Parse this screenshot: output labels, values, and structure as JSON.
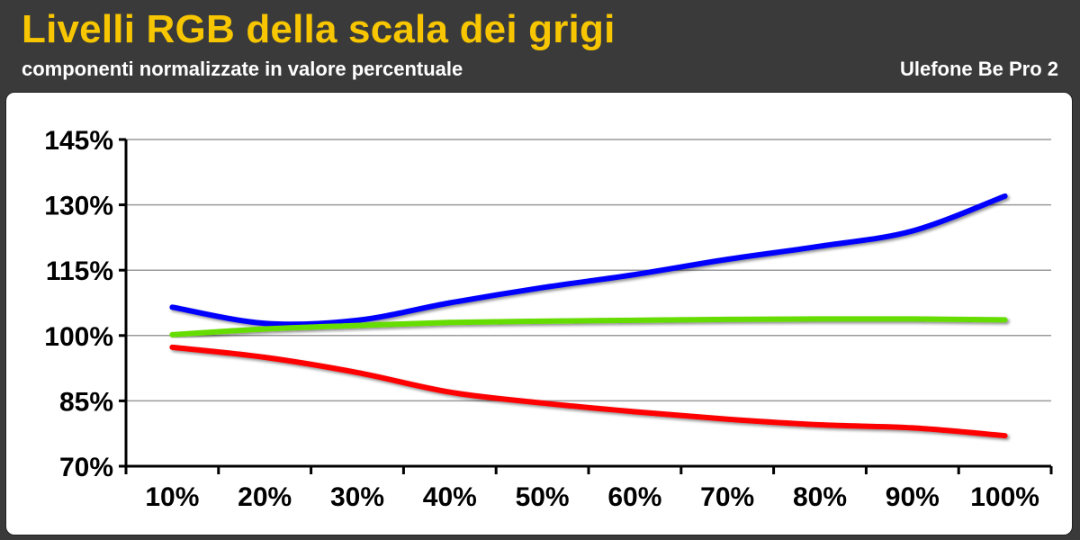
{
  "header": {
    "title": "Livelli RGB della scala dei grigi",
    "subtitle": "componenti normalizzate in valore percentuale",
    "device": "Ulefone Be Pro 2"
  },
  "colors": {
    "background": "#3a3a3a",
    "title": "#f7c600",
    "text": "#ffffff",
    "panel": "#ffffff",
    "grid": "#9a9a9a"
  },
  "chart_data": {
    "type": "line",
    "title": "Livelli RGB della scala dei grigi",
    "subtitle": "componenti normalizzate in valore percentuale",
    "xlabel": "",
    "ylabel": "",
    "categories": [
      "10%",
      "20%",
      "30%",
      "40%",
      "50%",
      "60%",
      "70%",
      "80%",
      "90%",
      "100%"
    ],
    "yticks": [
      "70%",
      "85%",
      "100%",
      "115%",
      "130%",
      "145%"
    ],
    "ylim": [
      70,
      145
    ],
    "grid": true,
    "legend": "none",
    "series": [
      {
        "color": "#0000ff",
        "values": [
          106.5,
          102.8,
          103.5,
          107.5,
          111.0,
          114.0,
          117.5,
          120.5,
          124.0,
          132.0
        ]
      },
      {
        "color": "#66dd00",
        "values": [
          100.2,
          101.5,
          102.3,
          103.0,
          103.3,
          103.5,
          103.7,
          103.8,
          103.8,
          103.6
        ]
      },
      {
        "color": "#ff0000",
        "values": [
          97.3,
          95.0,
          91.5,
          87.0,
          84.5,
          82.5,
          80.8,
          79.5,
          78.8,
          77.0
        ]
      }
    ]
  }
}
